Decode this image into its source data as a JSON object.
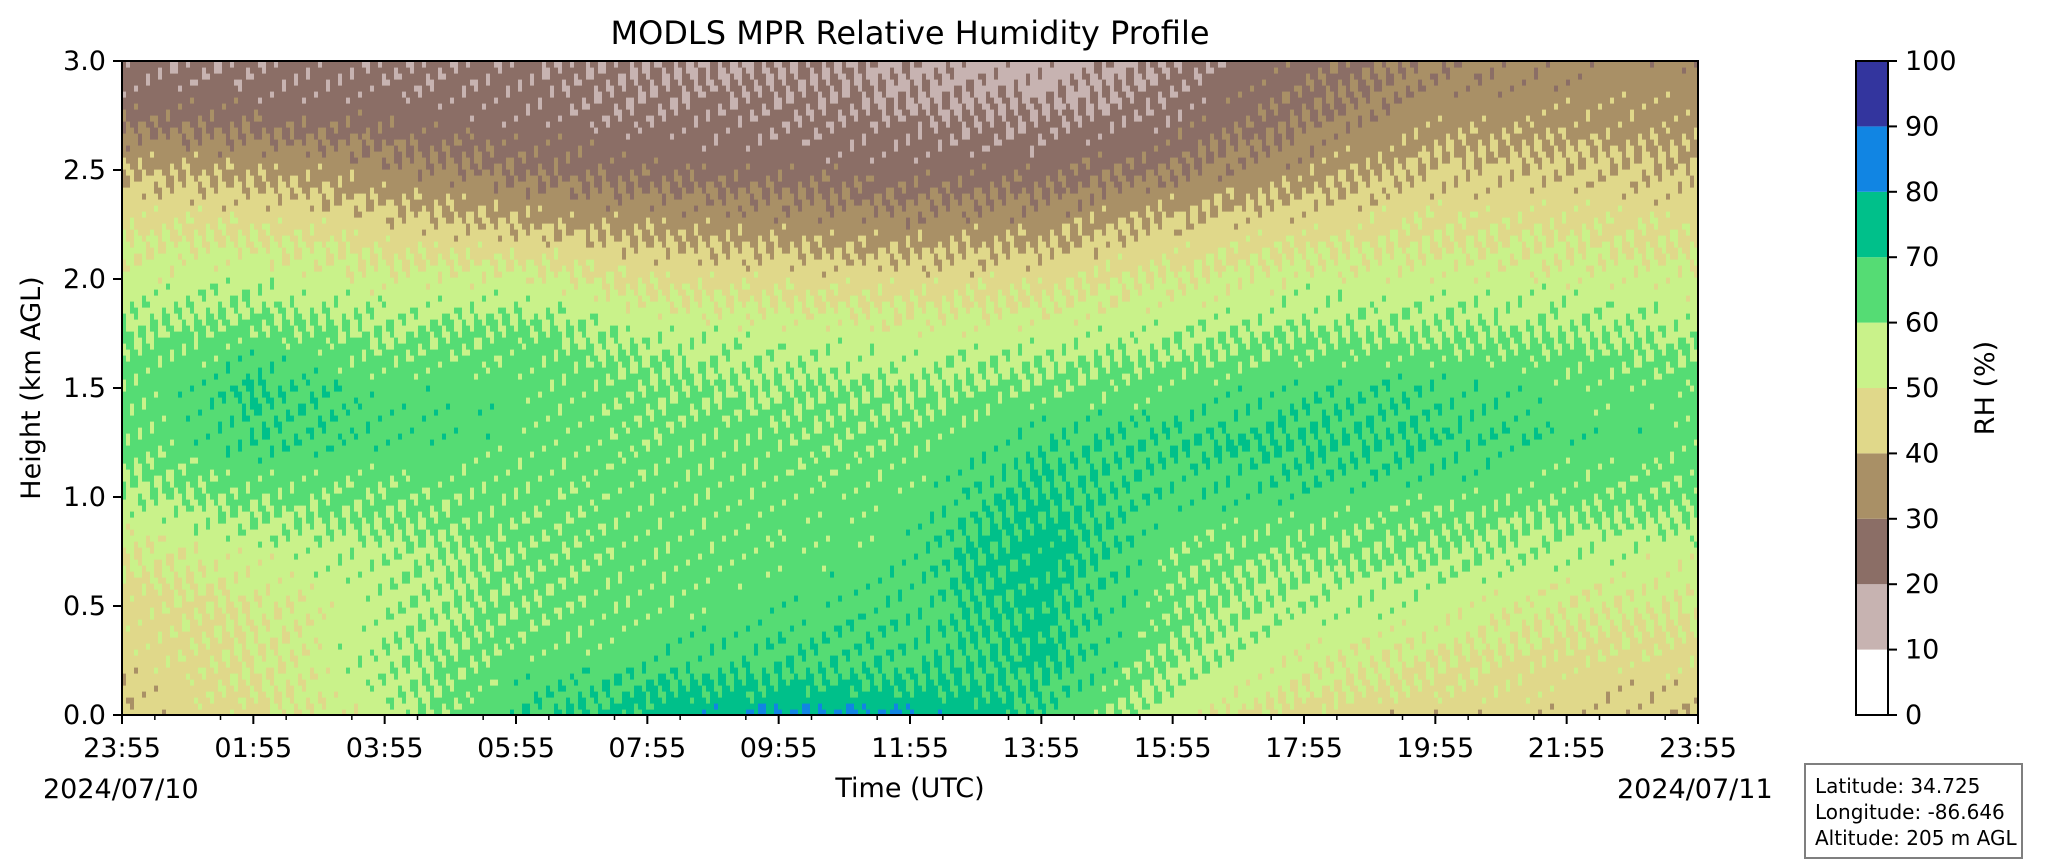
{
  "chart_data": {
    "type": "heatmap",
    "subtype": "filled-contour",
    "title": "MODLS MPR Relative Humidity Profile",
    "xlabel": "Time (UTC)",
    "ylabel": "Height (km AGL)",
    "ylim": [
      0.0,
      3.0
    ],
    "x_tick_labels": [
      "23:55",
      "01:55",
      "03:55",
      "05:55",
      "07:55",
      "09:55",
      "11:55",
      "13:55",
      "15:55",
      "17:55",
      "19:55",
      "21:55",
      "23:55"
    ],
    "y_tick_labels": [
      "0.0",
      "0.5",
      "1.0",
      "1.5",
      "2.0",
      "2.5",
      "3.0"
    ],
    "start_date_label": "2024/07/10",
    "end_date_label": "2024/07/11",
    "colorbar": {
      "label": "RH (%)",
      "levels": [
        0,
        10,
        20,
        30,
        40,
        50,
        60,
        70,
        80,
        90,
        100
      ],
      "colors": [
        "#ffffff",
        "#c7b3b1",
        "#8b6e66",
        "#a99066",
        "#e0d88a",
        "#c9f28a",
        "#55dc74",
        "#00c08a",
        "#1185e3",
        "#33359e"
      ]
    },
    "height_km": [
      0.0,
      0.1,
      0.25,
      0.5,
      0.75,
      1.0,
      1.25,
      1.5,
      1.75,
      2.0,
      2.25,
      2.5,
      2.75,
      3.0
    ],
    "rh_profiles": [
      {
        "time": "23:55",
        "rh": [
          42,
          43,
          44,
          46,
          50,
          58,
          62,
          63,
          60,
          54,
          48,
          40,
          27,
          22
        ]
      },
      {
        "time": "01:55",
        "rh": [
          48,
          49,
          50,
          51,
          55,
          62,
          68,
          70,
          63,
          56,
          48,
          38,
          26,
          22
        ]
      },
      {
        "time": "03:55",
        "rh": [
          55,
          57,
          58,
          56,
          58,
          62,
          66,
          65,
          60,
          53,
          44,
          34,
          25,
          22
        ]
      },
      {
        "time": "05:55",
        "rh": [
          68,
          66,
          64,
          62,
          62,
          63,
          65,
          65,
          63,
          54,
          40,
          29,
          24,
          22
        ]
      },
      {
        "time": "07:55",
        "rh": [
          74,
          71,
          66,
          64,
          64,
          64,
          63,
          62,
          57,
          48,
          37,
          27,
          22,
          20
        ]
      },
      {
        "time": "09:55",
        "rh": [
          82,
          73,
          68,
          65,
          64,
          64,
          63,
          60,
          55,
          46,
          35,
          26,
          22,
          20
        ]
      },
      {
        "time": "11:55",
        "rh": [
          81,
          72,
          68,
          67,
          66,
          65,
          63,
          60,
          54,
          45,
          34,
          25,
          21,
          18
        ]
      },
      {
        "time": "13:55",
        "rh": [
          68,
          70,
          72,
          72,
          74,
          71,
          68,
          62,
          55,
          47,
          36,
          26,
          20,
          16
        ]
      },
      {
        "time": "15:55",
        "rh": [
          53,
          57,
          60,
          62,
          63,
          66,
          69,
          64,
          58,
          51,
          42,
          30,
          23,
          21
        ]
      },
      {
        "time": "17:55",
        "rh": [
          45,
          50,
          53,
          57,
          61,
          66,
          70,
          67,
          60,
          54,
          46,
          36,
          30,
          26
        ]
      },
      {
        "time": "19:55",
        "rh": [
          44,
          47,
          50,
          55,
          60,
          64,
          69,
          67,
          60,
          54,
          48,
          42,
          35,
          32
        ]
      },
      {
        "time": "21:55",
        "rh": [
          43,
          45,
          47,
          52,
          56,
          63,
          66,
          65,
          60,
          54,
          48,
          42,
          36,
          34
        ]
      },
      {
        "time": "23:55",
        "rh": [
          42,
          44,
          46,
          51,
          55,
          62,
          64,
          64,
          58,
          53,
          47,
          41,
          36,
          34
        ]
      }
    ]
  },
  "info": {
    "latitude": "Latitude: 34.725",
    "longitude": "Longitude: -86.646",
    "altitude": "Altitude: 205 m AGL"
  }
}
